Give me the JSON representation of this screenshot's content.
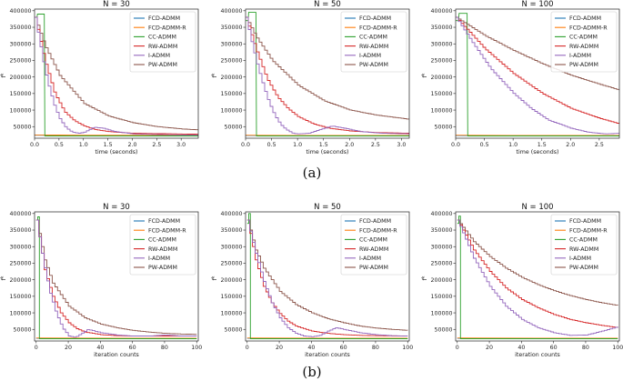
{
  "captions": [
    "(a)",
    "(b)"
  ],
  "colors": {
    "FCD-ADMM": "#1f77b4",
    "FCD-ADMM-R": "#ff7f0e",
    "CC-ADMM": "#2ca02c",
    "RW-ADMM": "#d62728",
    "I-ADMM": "#9467bd",
    "PW-ADMM": "#8c564b"
  },
  "legend": [
    "FCD-ADMM",
    "FCD-ADMM-R",
    "CC-ADMM",
    "RW-ADMM",
    "I-ADMM",
    "PW-ADMM"
  ],
  "chart_data": [
    {
      "type": "line",
      "title": "N = 30",
      "xlabel": "time (seconds)",
      "ylabel": "f^k",
      "xlim": [
        0,
        3.35
      ],
      "ylim": [
        15000,
        405000
      ],
      "xticks": [
        0,
        0.5,
        1,
        1.5,
        2,
        2.5,
        3
      ],
      "xtick_labels": [
        "0.0",
        "0.5",
        "1.0",
        "1.5",
        "2.0",
        "2.5",
        "3.0"
      ],
      "yticks": [
        50000,
        100000,
        150000,
        200000,
        250000,
        300000,
        350000,
        400000
      ],
      "series": [
        {
          "name": "PW-ADMM",
          "x": [
            0,
            0.2,
            0.5,
            1.0,
            1.5,
            2.0,
            2.5,
            3.0,
            3.35
          ],
          "y": [
            380000,
            295000,
            205000,
            120000,
            82000,
            62000,
            50000,
            43000,
            40000
          ]
        },
        {
          "name": "RW-ADMM",
          "x": [
            0,
            0.2,
            0.4,
            0.6,
            0.8,
            1.0,
            1.2,
            1.5,
            2.0,
            3.35
          ],
          "y": [
            380000,
            250000,
            150000,
            95000,
            68000,
            52000,
            42000,
            35000,
            30000,
            27000
          ]
        },
        {
          "name": "I-ADMM",
          "x": [
            0,
            0.1,
            0.2,
            0.3,
            0.4,
            0.5,
            0.6,
            0.7,
            0.8,
            0.9,
            1.0,
            1.2,
            1.4,
            1.6,
            2.0,
            2.5,
            3.0,
            3.35
          ],
          "y": [
            380000,
            300000,
            220000,
            160000,
            110000,
            75000,
            52000,
            38000,
            32000,
            30000,
            33000,
            48000,
            45000,
            36000,
            28000,
            26000,
            25000,
            25000
          ]
        },
        {
          "name": "CC-ADMM",
          "x": [
            0,
            0.05,
            0.06,
            0.2,
            0.21,
            3.35
          ],
          "y": [
            380000,
            380000,
            390000,
            390000,
            22000,
            22000
          ]
        },
        {
          "name": "FCD-ADMM-R",
          "x": [
            0,
            0.5,
            1,
            2,
            3.35
          ],
          "y": [
            25000,
            24500,
            24000,
            24000,
            24000
          ]
        },
        {
          "name": "FCD-ADMM",
          "x": [
            0,
            0.5,
            1,
            2,
            3.35
          ],
          "y": [
            24000,
            23500,
            23000,
            23000,
            23000
          ]
        }
      ]
    },
    {
      "type": "line",
      "title": "N = 50",
      "xlabel": "time (seconds)",
      "ylabel": "f^k",
      "xlim": [
        0,
        3.15
      ],
      "ylim": [
        15000,
        405000
      ],
      "xticks": [
        0,
        0.5,
        1,
        1.5,
        2,
        2.5,
        3
      ],
      "xtick_labels": [
        "0.0",
        "0.5",
        "1.0",
        "1.5",
        "2.0",
        "2.5",
        "3.0"
      ],
      "yticks": [
        50000,
        100000,
        150000,
        200000,
        250000,
        300000,
        350000,
        400000
      ],
      "series": [
        {
          "name": "PW-ADMM",
          "x": [
            0,
            0.2,
            0.5,
            1.0,
            1.5,
            2.0,
            2.5,
            3.15
          ],
          "y": [
            380000,
            320000,
            250000,
            175000,
            128000,
            100000,
            85000,
            72000
          ]
        },
        {
          "name": "RW-ADMM",
          "x": [
            0,
            0.2,
            0.4,
            0.6,
            0.8,
            1.0,
            1.3,
            1.6,
            2.0,
            2.5,
            3.15
          ],
          "y": [
            380000,
            280000,
            195000,
            140000,
            105000,
            80000,
            58000,
            45000,
            37000,
            32000,
            30000
          ]
        },
        {
          "name": "I-ADMM",
          "x": [
            0,
            0.1,
            0.2,
            0.3,
            0.4,
            0.5,
            0.6,
            0.7,
            0.8,
            0.9,
            1.0,
            1.2,
            1.4,
            1.65,
            1.9,
            2.2,
            2.6,
            3.15
          ],
          "y": [
            380000,
            310000,
            245000,
            190000,
            140000,
            100000,
            70000,
            50000,
            38000,
            30000,
            28000,
            30000,
            40000,
            52000,
            45000,
            35000,
            30000,
            28000
          ]
        },
        {
          "name": "CC-ADMM",
          "x": [
            0,
            0.05,
            0.06,
            0.2,
            0.21,
            3.15
          ],
          "y": [
            370000,
            370000,
            395000,
            395000,
            22000,
            22000
          ]
        },
        {
          "name": "FCD-ADMM-R",
          "x": [
            0,
            1,
            2,
            3.15
          ],
          "y": [
            24000,
            23500,
            23500,
            23500
          ]
        },
        {
          "name": "FCD-ADMM",
          "x": [
            0,
            1,
            2,
            3.15
          ],
          "y": [
            23000,
            22500,
            22500,
            22500
          ]
        }
      ]
    },
    {
      "type": "line",
      "title": "N = 100",
      "xlabel": "time (seconds)",
      "ylabel": "f^k",
      "xlim": [
        0,
        2.85
      ],
      "ylim": [
        15000,
        405000
      ],
      "xticks": [
        0,
        0.5,
        1,
        1.5,
        2,
        2.5
      ],
      "xtick_labels": [
        "0.0",
        "0.5",
        "1.0",
        "1.5",
        "2.0",
        "2.5"
      ],
      "yticks": [
        50000,
        100000,
        150000,
        200000,
        250000,
        300000,
        350000,
        400000
      ],
      "series": [
        {
          "name": "PW-ADMM",
          "x": [
            0,
            0.5,
            1.0,
            1.5,
            2.0,
            2.5,
            2.85
          ],
          "y": [
            380000,
            325000,
            280000,
            240000,
            205000,
            178000,
            160000
          ]
        },
        {
          "name": "RW-ADMM",
          "x": [
            0,
            0.5,
            1.0,
            1.5,
            2.0,
            2.5,
            2.85
          ],
          "y": [
            380000,
            285000,
            210000,
            150000,
            105000,
            75000,
            58000
          ]
        },
        {
          "name": "I-ADMM",
          "x": [
            0,
            0.3,
            0.6,
            1.0,
            1.3,
            1.6,
            2.0,
            2.3,
            2.6,
            2.85
          ],
          "y": [
            380000,
            300000,
            225000,
            150000,
            105000,
            70000,
            45000,
            33000,
            28000,
            30000
          ]
        },
        {
          "name": "CC-ADMM",
          "x": [
            0,
            0.05,
            0.06,
            0.2,
            0.21,
            2.85
          ],
          "y": [
            370000,
            370000,
            392000,
            392000,
            22000,
            22000
          ]
        },
        {
          "name": "FCD-ADMM-R",
          "x": [
            0,
            1,
            2,
            2.85
          ],
          "y": [
            24000,
            23500,
            23500,
            23500
          ]
        },
        {
          "name": "FCD-ADMM",
          "x": [
            0,
            1,
            2,
            2.85
          ],
          "y": [
            23000,
            22500,
            22500,
            22500
          ]
        }
      ]
    },
    {
      "type": "line",
      "title": "N = 30",
      "xlabel": "iteration counts",
      "ylabel": "f^k",
      "xlim": [
        -1,
        101
      ],
      "ylim": [
        15000,
        405000
      ],
      "xticks": [
        0,
        20,
        40,
        60,
        80,
        100
      ],
      "xtick_labels": [
        "0",
        "20",
        "40",
        "60",
        "80",
        "100"
      ],
      "yticks": [
        50000,
        100000,
        150000,
        200000,
        250000,
        300000,
        350000,
        400000
      ],
      "series": [
        {
          "name": "PW-ADMM",
          "x": [
            0,
            5,
            10,
            20,
            30,
            40,
            50,
            60,
            70,
            80,
            90,
            100
          ],
          "y": [
            380000,
            260000,
            190000,
            120000,
            85000,
            66000,
            55000,
            47000,
            42000,
            38000,
            36000,
            35000
          ]
        },
        {
          "name": "RW-ADMM",
          "x": [
            0,
            5,
            10,
            15,
            20,
            25,
            30,
            40,
            50,
            60,
            70,
            80,
            100
          ],
          "y": [
            380000,
            230000,
            150000,
            100000,
            70000,
            52000,
            42000,
            34000,
            31000,
            30000,
            30000,
            30000,
            30000
          ]
        },
        {
          "name": "I-ADMM",
          "x": [
            0,
            4,
            8,
            12,
            16,
            20,
            24,
            28,
            32,
            36,
            40,
            50,
            60,
            70,
            80,
            90,
            100
          ],
          "y": [
            380000,
            260000,
            165000,
            100000,
            55000,
            30000,
            26000,
            38000,
            50000,
            45000,
            40000,
            33000,
            30000,
            30000,
            33000,
            30000,
            30000
          ]
        },
        {
          "name": "CC-ADMM",
          "x": [
            0,
            1,
            1.01,
            2,
            2.01,
            100
          ],
          "y": [
            380000,
            380000,
            390000,
            390000,
            22000,
            22000
          ]
        },
        {
          "name": "FCD-ADMM-R",
          "x": [
            0,
            50,
            100
          ],
          "y": [
            24000,
            23500,
            23500
          ]
        },
        {
          "name": "FCD-ADMM",
          "x": [
            0,
            50,
            100
          ],
          "y": [
            23000,
            22500,
            22500
          ]
        }
      ]
    },
    {
      "type": "line",
      "title": "N = 50",
      "xlabel": "iteration counts",
      "ylabel": "f^k",
      "xlim": [
        -1,
        101
      ],
      "ylim": [
        15000,
        405000
      ],
      "xticks": [
        0,
        20,
        40,
        60,
        80,
        100
      ],
      "xtick_labels": [
        "0",
        "20",
        "40",
        "60",
        "80",
        "100"
      ],
      "yticks": [
        50000,
        100000,
        150000,
        200000,
        250000,
        300000,
        350000,
        400000
      ],
      "series": [
        {
          "name": "PW-ADMM",
          "x": [
            0,
            5,
            10,
            20,
            30,
            40,
            50,
            60,
            70,
            80,
            90,
            100
          ],
          "y": [
            380000,
            290000,
            235000,
            165000,
            125000,
            100000,
            82000,
            70000,
            60000,
            54000,
            50000,
            47000
          ]
        },
        {
          "name": "RW-ADMM",
          "x": [
            0,
            5,
            10,
            15,
            20,
            25,
            30,
            40,
            50,
            60,
            70,
            80,
            100
          ],
          "y": [
            380000,
            260000,
            180000,
            130000,
            98000,
            75000,
            60000,
            45000,
            38000,
            34000,
            32000,
            31000,
            30000
          ]
        },
        {
          "name": "I-ADMM",
          "x": [
            0,
            5,
            10,
            15,
            20,
            25,
            30,
            35,
            40,
            45,
            50,
            55,
            60,
            70,
            80,
            90,
            100
          ],
          "y": [
            380000,
            280000,
            195000,
            130000,
            85000,
            55000,
            38000,
            30000,
            28000,
            32000,
            45000,
            55000,
            50000,
            40000,
            34000,
            31000,
            30000
          ]
        },
        {
          "name": "CC-ADMM",
          "x": [
            0,
            1,
            1.01,
            2,
            2.01,
            100
          ],
          "y": [
            370000,
            370000,
            400000,
            400000,
            22000,
            22000
          ]
        },
        {
          "name": "FCD-ADMM-R",
          "x": [
            0,
            50,
            100
          ],
          "y": [
            24000,
            23500,
            23500
          ]
        },
        {
          "name": "FCD-ADMM",
          "x": [
            0,
            50,
            100
          ],
          "y": [
            23000,
            22500,
            22500
          ]
        }
      ]
    },
    {
      "type": "line",
      "title": "N = 100",
      "xlabel": "iteration counts",
      "ylabel": "f^k",
      "xlim": [
        -1,
        101
      ],
      "ylim": [
        15000,
        405000
      ],
      "xticks": [
        0,
        20,
        40,
        60,
        80,
        100
      ],
      "xtick_labels": [
        "0",
        "20",
        "40",
        "60",
        "80",
        "100"
      ],
      "yticks": [
        50000,
        100000,
        150000,
        200000,
        250000,
        300000,
        350000,
        400000
      ],
      "series": [
        {
          "name": "PW-ADMM",
          "x": [
            0,
            10,
            20,
            30,
            40,
            50,
            60,
            70,
            80,
            90,
            100
          ],
          "y": [
            380000,
            315000,
            270000,
            235000,
            207000,
            185000,
            167000,
            152000,
            140000,
            130000,
            122000
          ]
        },
        {
          "name": "RW-ADMM",
          "x": [
            0,
            10,
            20,
            30,
            40,
            50,
            60,
            70,
            80,
            90,
            100
          ],
          "y": [
            380000,
            290000,
            225000,
            175000,
            140000,
            115000,
            95000,
            80000,
            70000,
            62000,
            55000
          ]
        },
        {
          "name": "I-ADMM",
          "x": [
            0,
            10,
            20,
            30,
            40,
            50,
            60,
            70,
            80,
            90,
            100
          ],
          "y": [
            380000,
            265000,
            180000,
            120000,
            80000,
            55000,
            40000,
            32000,
            33000,
            45000,
            58000
          ]
        },
        {
          "name": "CC-ADMM",
          "x": [
            0,
            1,
            1.01,
            2,
            2.01,
            100
          ],
          "y": [
            370000,
            370000,
            392000,
            392000,
            22000,
            22000
          ]
        },
        {
          "name": "FCD-ADMM-R",
          "x": [
            0,
            50,
            100
          ],
          "y": [
            24000,
            23500,
            23500
          ]
        },
        {
          "name": "FCD-ADMM",
          "x": [
            0,
            50,
            100
          ],
          "y": [
            23000,
            22500,
            22500
          ]
        }
      ]
    }
  ]
}
